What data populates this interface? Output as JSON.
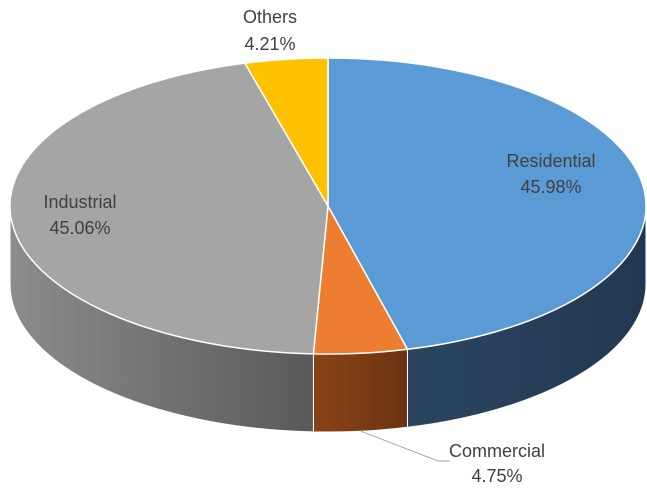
{
  "chart_data": {
    "type": "pie",
    "variant": "3d",
    "title": "",
    "legend": "none",
    "slices": [
      {
        "label": "Residential",
        "value": 45.98,
        "display": "45.98%",
        "color": "#5B9BD5",
        "side_color": "#2E4A66",
        "label_color": "#FFFFFF"
      },
      {
        "label": "Commercial",
        "value": 4.75,
        "display": "4.75%",
        "color": "#ED7D31",
        "side_color": "#7A3D12",
        "label_color": "#404040"
      },
      {
        "label": "Industrial",
        "value": 45.06,
        "display": "45.06%",
        "color": "#A5A5A5",
        "side_color": "#7A7A7A",
        "label_color": "#404040"
      },
      {
        "label": "Others",
        "value": 4.21,
        "display": "4.21%",
        "color": "#FFC000",
        "side_color": "#B08400",
        "label_color": "#404040"
      }
    ]
  }
}
